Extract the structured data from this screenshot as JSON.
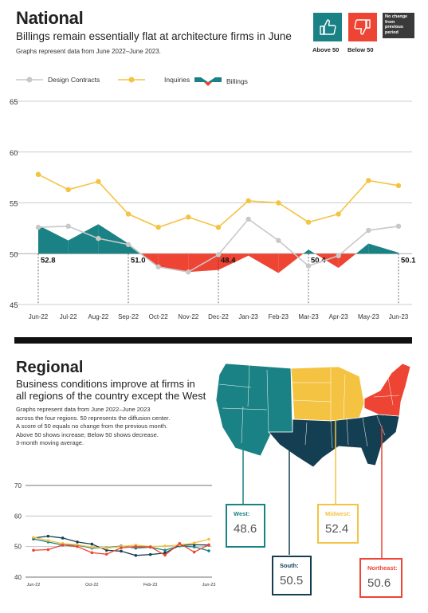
{
  "national": {
    "title": "National",
    "subtitle": "Billings remain essentially flat at architecture firms in June",
    "note": "Graphs represent data from June 2022–June 2023.",
    "badges": {
      "above": "Above 50",
      "below": "Below 50",
      "no_change": [
        "No change",
        "from",
        "previous",
        "period"
      ],
      "colors": {
        "above": "#1a8184",
        "below": "#ee4433",
        "no_change": "#3a3a3a"
      }
    },
    "legend": [
      "Design Contracts",
      "Inquiries",
      "Billings"
    ]
  },
  "regional": {
    "title": "Regional",
    "subtitle_lines": [
      "Business conditions improve at firms in",
      "all regions of the country except the West"
    ],
    "note_lines": [
      "Graphs represent data from June 2022–June 2023",
      "across the four regions. 50 represents the diffusion center.",
      "A score of 50 equals no change from the previous month.",
      "Above 50 shows increase; Below 50 shows decrease.",
      "3-month moving average."
    ],
    "regions": [
      {
        "name": "West:",
        "value": "48.6",
        "color": "#1a8184"
      },
      {
        "name": "South:",
        "value": "50.5",
        "color": "#143f52"
      },
      {
        "name": "Midwest:",
        "value": "52.4",
        "color": "#f5c342"
      },
      {
        "name": "Northeast:",
        "value": "50.6",
        "color": "#ee4433"
      }
    ]
  },
  "chart_data": [
    {
      "type": "line",
      "x": [
        "Jun-22",
        "Jul-22",
        "Aug-22",
        "Sep-22",
        "Oct-22",
        "Nov-22",
        "Dec-22",
        "Jan-23",
        "Feb-23",
        "Mar-23",
        "Apr-23",
        "May-23",
        "Jun-23"
      ],
      "ylim": [
        45,
        65
      ],
      "yticks": [
        45,
        50,
        55,
        60,
        65
      ],
      "grid": true,
      "legend_position": "top",
      "series": [
        {
          "name": "Design Contracts",
          "color": "#c8c8c8",
          "values": [
            52.6,
            52.7,
            51.5,
            50.9,
            48.7,
            48.2,
            49.9,
            53.4,
            51.3,
            48.8,
            49.8,
            52.3,
            52.7
          ]
        },
        {
          "name": "Inquiries",
          "color": "#f5c342",
          "values": [
            57.8,
            56.3,
            57.1,
            53.9,
            52.6,
            53.6,
            52.6,
            55.2,
            55.0,
            53.1,
            53.9,
            57.2,
            56.7
          ]
        },
        {
          "name": "Billings",
          "type": "area",
          "baseline": 50,
          "colors": {
            "above": "#1a8184",
            "below": "#ee4433"
          },
          "values": [
            52.8,
            51.3,
            52.9,
            51.0,
            48.7,
            48.2,
            48.4,
            49.8,
            48.1,
            50.4,
            48.6,
            51.0,
            50.1
          ]
        }
      ],
      "annotations": [
        {
          "x": "Jun-22",
          "label": "52.8"
        },
        {
          "x": "Sep-22",
          "label": "51.0"
        },
        {
          "x": "Dec-22",
          "label": "48.4"
        },
        {
          "x": "Mar-23",
          "label": "50.4"
        },
        {
          "x": "Jun-23",
          "label": "50.1"
        }
      ]
    },
    {
      "type": "line",
      "x": [
        "Jun-22",
        "Jul-22",
        "Aug-22",
        "Sep-22",
        "Oct-22",
        "Nov-22",
        "Dec-22",
        "Jan-23",
        "Feb-23",
        "Mar-23",
        "Apr-23",
        "May-23",
        "Jun-23"
      ],
      "xtick_labels": [
        "Jun-22",
        "Oct-22",
        "Feb-23",
        "Jun-23"
      ],
      "ylim": [
        40,
        70
      ],
      "yticks": [
        40,
        50,
        60,
        70
      ],
      "grid": true,
      "series": [
        {
          "name": "West",
          "color": "#1a8184",
          "values": [
            52.5,
            51.5,
            50.5,
            50.5,
            49.5,
            49.6,
            50.2,
            49.5,
            49.8,
            48.8,
            50.2,
            49.9,
            48.6
          ]
        },
        {
          "name": "South",
          "color": "#143f52",
          "values": [
            52.8,
            53.4,
            52.8,
            51.5,
            50.8,
            48.8,
            48.5,
            47.1,
            47.4,
            47.9,
            50.4,
            50.6,
            50.5
          ]
        },
        {
          "name": "Midwest",
          "color": "#f5c342",
          "values": [
            53.0,
            52.0,
            51.0,
            50.6,
            49.8,
            49.5,
            50.0,
            50.5,
            50.0,
            50.2,
            50.5,
            51.2,
            52.4
          ]
        },
        {
          "name": "Northeast",
          "color": "#ee4433",
          "values": [
            48.8,
            49.0,
            50.5,
            50.0,
            48.0,
            47.5,
            49.6,
            50.0,
            49.9,
            47.2,
            51.0,
            48.2,
            50.6
          ]
        }
      ]
    }
  ]
}
